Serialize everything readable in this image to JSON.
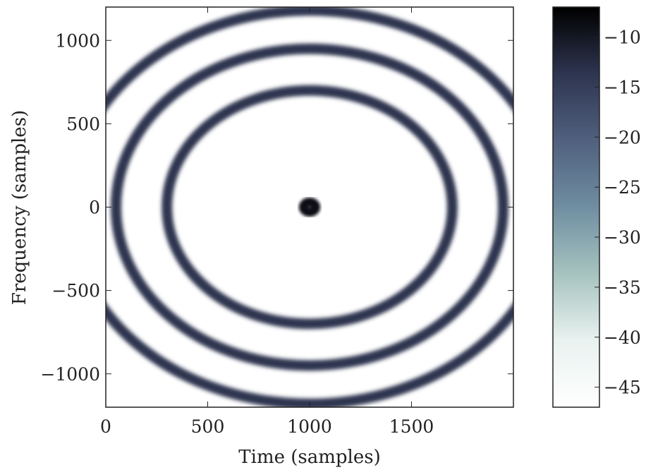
{
  "chart_data": [
    {
      "type": "heatmap",
      "title": "",
      "xlabel": "Time (samples)",
      "ylabel": "Frequency (samples)",
      "xlim": [
        0,
        2000
      ],
      "ylim": [
        -1200,
        1200
      ],
      "x_ticks": [
        0,
        500,
        1000,
        1500
      ],
      "x_tick_labels": [
        "0",
        "500",
        "1000",
        "1500"
      ],
      "y_ticks": [
        1000,
        500,
        0,
        -500,
        -1000
      ],
      "y_tick_labels": [
        "1000",
        "500",
        "0",
        "−500",
        "−1000"
      ],
      "center": [
        1000,
        0
      ],
      "rings": [
        {
          "radius": 30,
          "value": -8
        },
        {
          "radius": 700,
          "value": -12
        },
        {
          "radius": 950,
          "value": -12
        },
        {
          "radius": 1180,
          "value": -12
        }
      ],
      "colorbar": {
        "colormap": "bone_r",
        "range": [
          -47,
          -7
        ],
        "ticks": [
          -10,
          -15,
          -20,
          -25,
          -30,
          -35,
          -40,
          -45
        ],
        "tick_labels": [
          "−10",
          "−15",
          "−20",
          "−25",
          "−30",
          "−35",
          "−40",
          "−45"
        ]
      },
      "grid": false
    }
  ],
  "colors": {
    "ring": "#2e3550",
    "core": "#0a0a14",
    "colormap_stops": [
      "#ffffff",
      "#e9f2f0",
      "#a6c3bf",
      "#6f8ea1",
      "#50607e",
      "#2e3550",
      "#000000"
    ]
  }
}
